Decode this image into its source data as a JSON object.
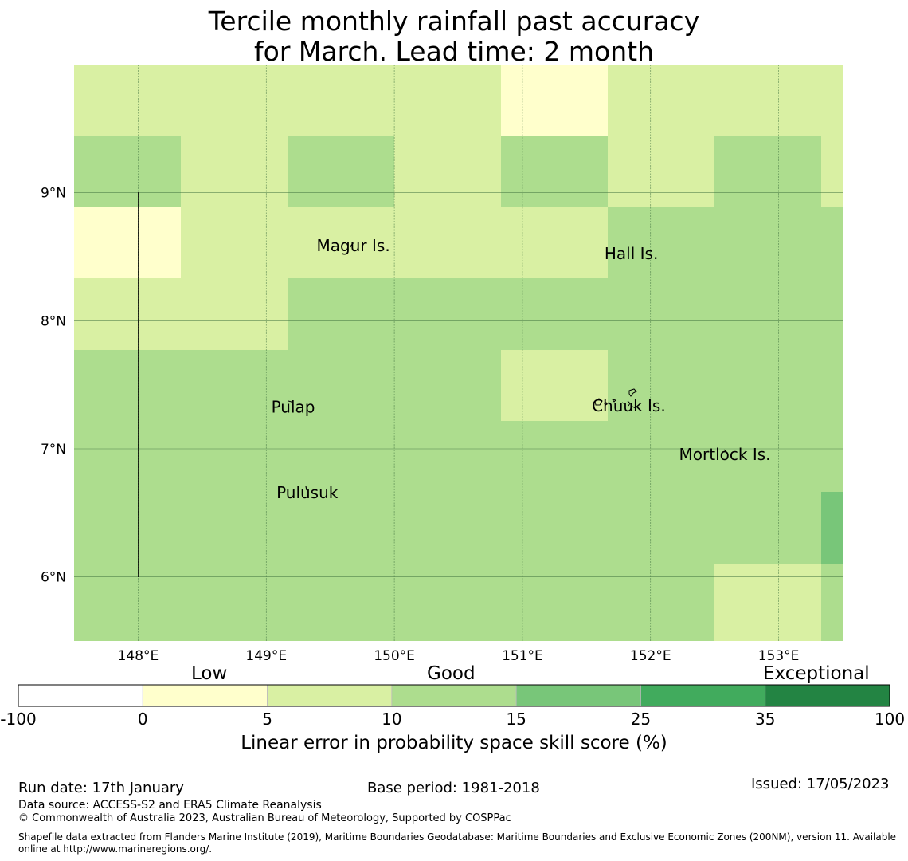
{
  "title": {
    "line1": "Tercile monthly rainfall past accuracy",
    "line2": "for March. Lead time: 2 month"
  },
  "map": {
    "lon_ticks": [
      "148°E",
      "149°E",
      "150°E",
      "151°E",
      "152°E",
      "153°E"
    ],
    "lat_ticks": [
      "9°N",
      "8°N",
      "7°N",
      "6°N"
    ],
    "lon_range": [
      147.5,
      153.5
    ],
    "lat_range": [
      5.5,
      10.0
    ],
    "grid_cols": 8,
    "grid_rows": 8,
    "cells": [
      [
        2,
        2,
        2,
        2,
        1,
        2,
        2,
        2
      ],
      [
        3,
        2,
        3,
        2,
        3,
        2,
        3,
        2
      ],
      [
        1,
        2,
        2,
        2,
        2,
        3,
        3,
        3
      ],
      [
        2,
        2,
        3,
        3,
        3,
        3,
        3,
        3
      ],
      [
        3,
        3,
        3,
        3,
        2,
        3,
        3,
        3
      ],
      [
        3,
        3,
        3,
        3,
        3,
        3,
        3,
        3
      ],
      [
        3,
        3,
        3,
        3,
        3,
        3,
        3,
        4
      ],
      [
        3,
        3,
        3,
        3,
        3,
        3,
        2,
        3
      ]
    ],
    "places": [
      {
        "name": "Magur Is.",
        "lon": 149.68,
        "lat": 8.58
      },
      {
        "name": "Hall Is.",
        "lon": 151.85,
        "lat": 8.52
      },
      {
        "name": "Pulap",
        "lon": 149.21,
        "lat": 7.32
      },
      {
        "name": "Chuuk Is.",
        "lon": 151.83,
        "lat": 7.33
      },
      {
        "name": "Mortlock Is.",
        "lon": 152.58,
        "lat": 6.95
      },
      {
        "name": "Pulusuk",
        "lon": 149.32,
        "lat": 6.65
      }
    ],
    "boundary_line": {
      "lon": 148.0,
      "lat_from": 6.0,
      "lat_to": 9.0
    }
  },
  "colorbar": {
    "categories": [
      {
        "label": "Low"
      },
      {
        "label": "Good"
      },
      {
        "label": "Exceptional"
      }
    ],
    "bins": [
      {
        "from": "-100",
        "to": "0",
        "color": "#ffffff"
      },
      {
        "from": "0",
        "to": "5",
        "color": "#ffffcc"
      },
      {
        "from": "5",
        "to": "10",
        "color": "#d9f0a3"
      },
      {
        "from": "10",
        "to": "15",
        "color": "#addd8e"
      },
      {
        "from": "15",
        "to": "25",
        "color": "#78c679"
      },
      {
        "from": "25",
        "to": "35",
        "color": "#41ab5d"
      },
      {
        "from": "35",
        "to": "100",
        "color": "#238443"
      }
    ],
    "ticks": [
      "-100",
      "0",
      "5",
      "10",
      "15",
      "25",
      "35",
      "100"
    ],
    "label": "Linear error in probability space skill score (%)"
  },
  "footer": {
    "run_date": "Run date: 17th January",
    "base_period": "Base period: 1981-2018",
    "issued": "Issued: 17/05/2023",
    "data_source": "Data source: ACCESS-S2 and ERA5 Climate Reanalysis",
    "copyright": "© Commonwealth of Australia 2023, Australian Bureau of Meteorology, Supported by COSPPac",
    "shapefile_line1": "Shapefile data extracted from Flanders Marine Institute (2019), Maritime Boundaries Geodatabase: Maritime Boundaries and Exclusive Economic Zones (200NM), version 11. Available",
    "shapefile_line2": "online at http://www.marineregions.org/."
  }
}
